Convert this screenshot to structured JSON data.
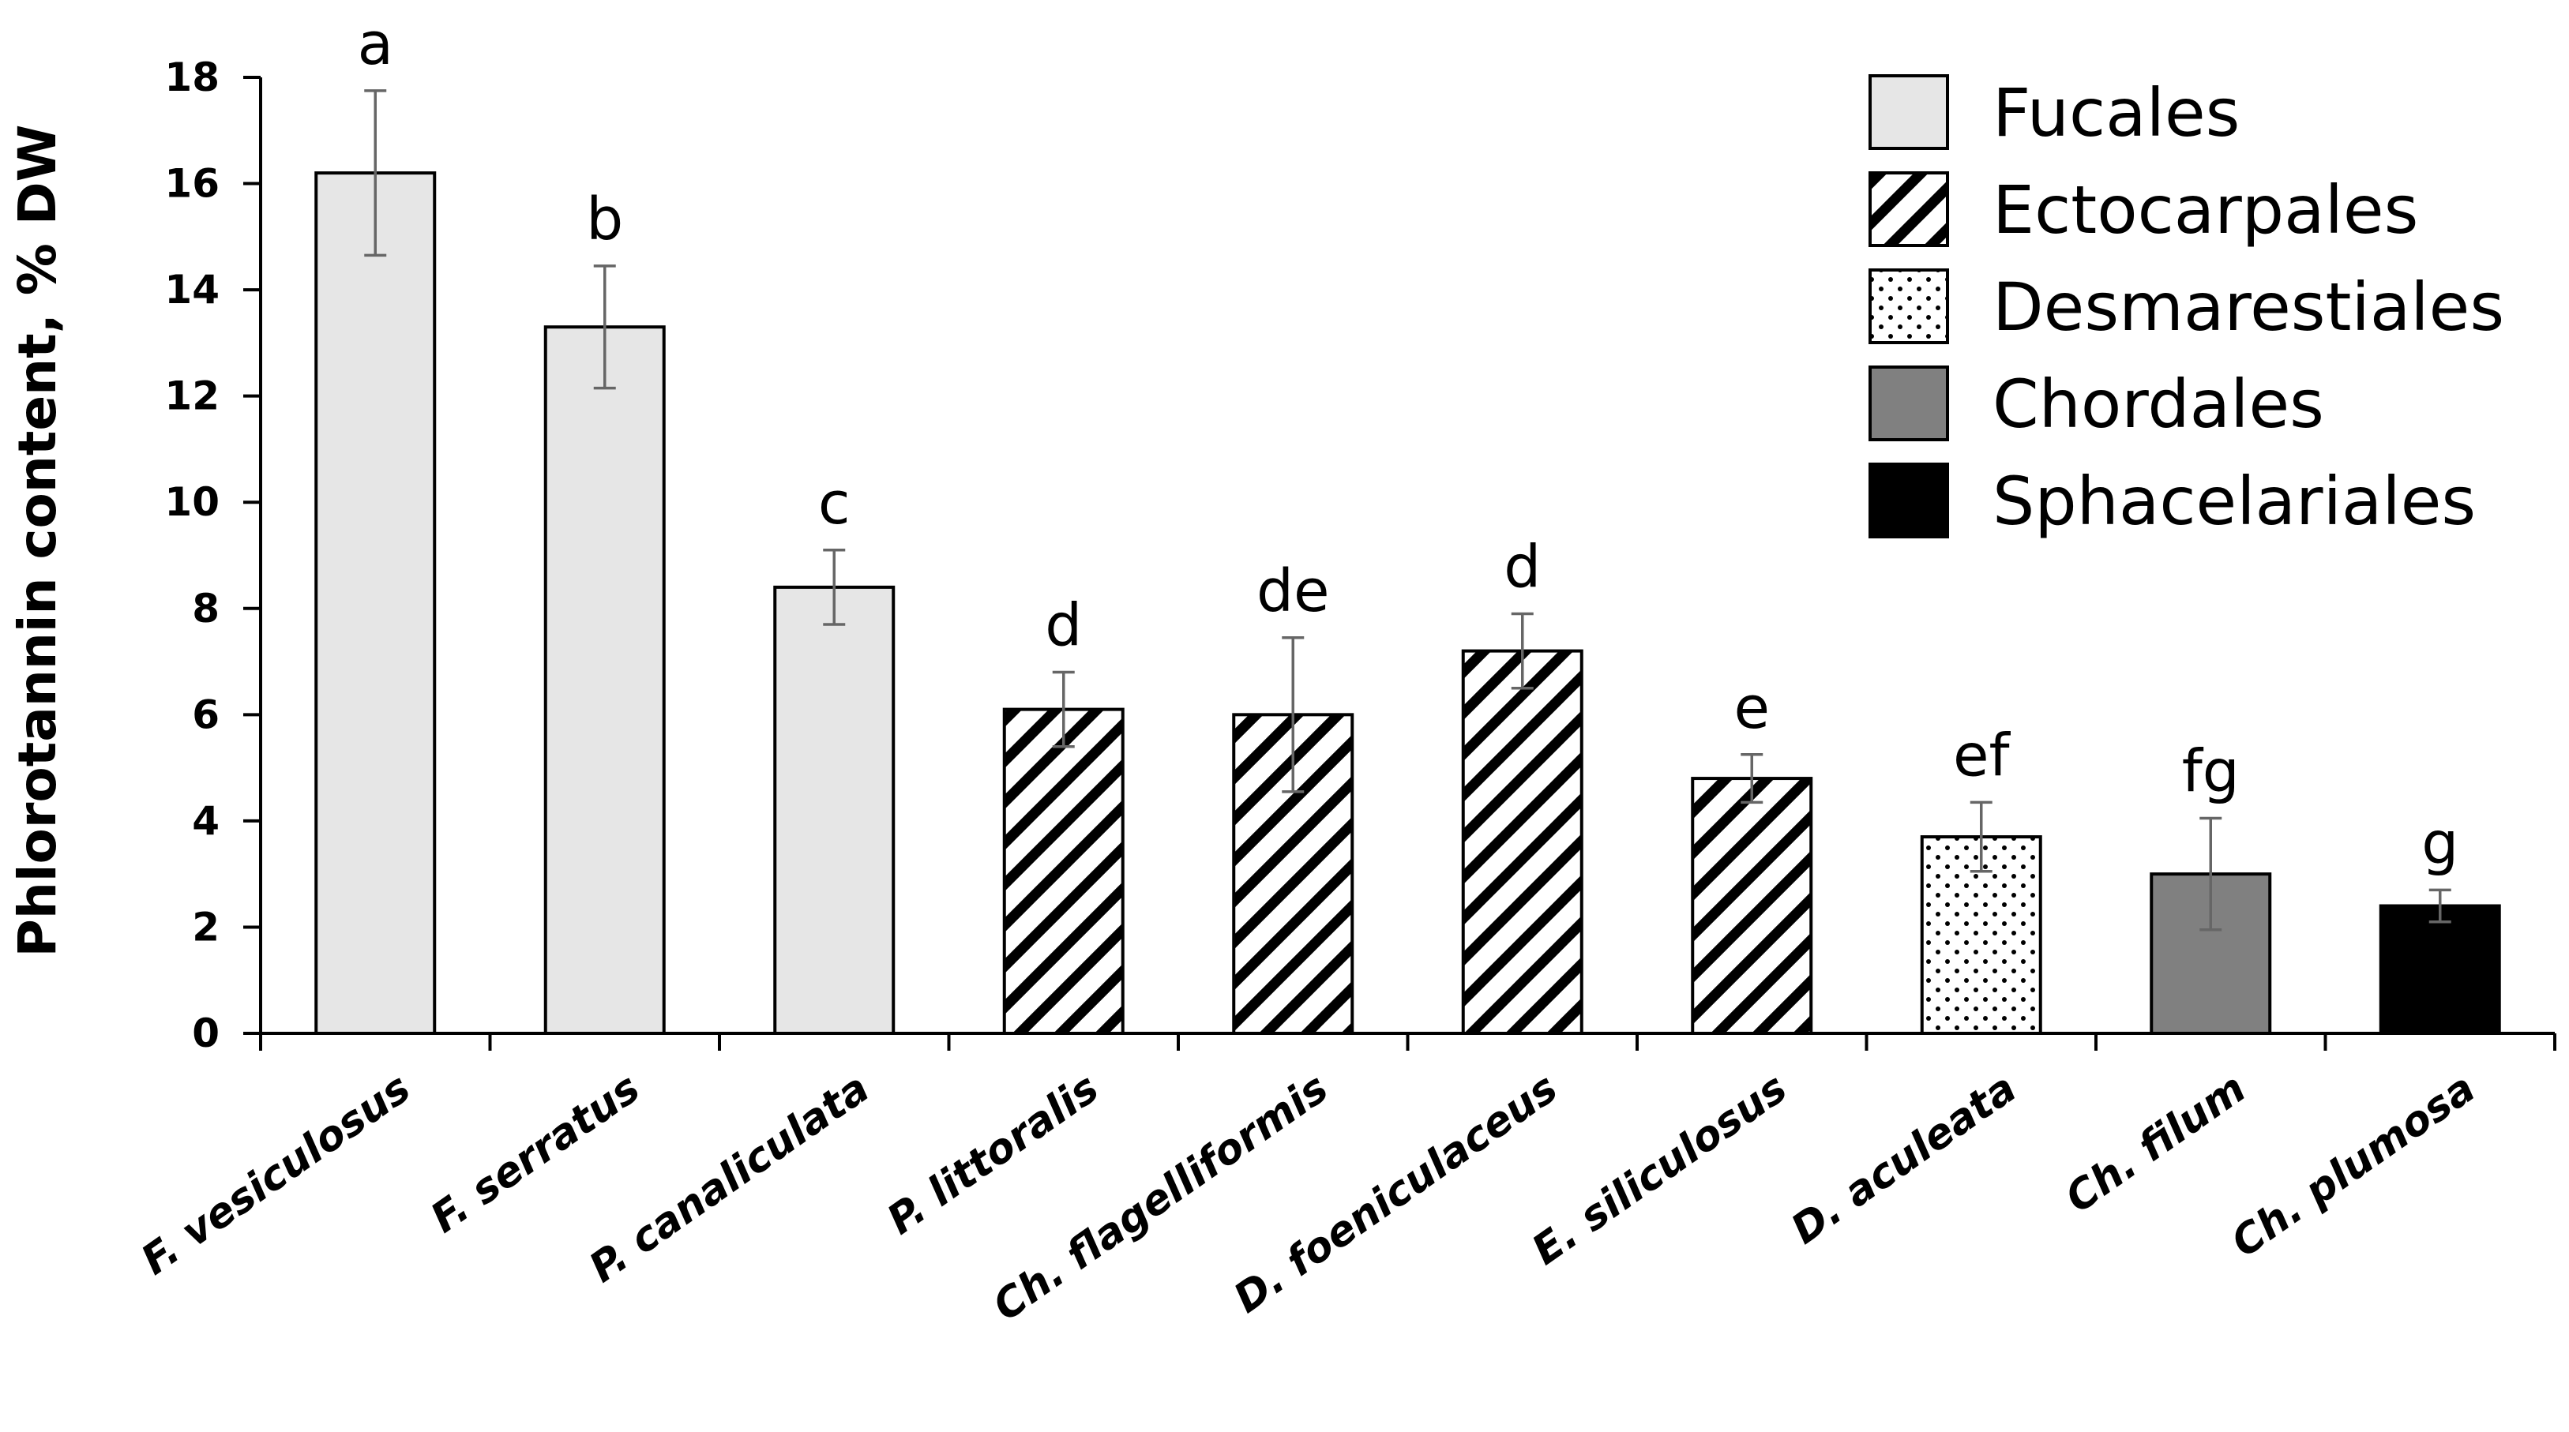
{
  "chart_data": {
    "type": "bar",
    "title": "",
    "xlabel": "",
    "ylabel": "Phlorotannin content, % DW",
    "ylim": [
      0,
      18
    ],
    "yticks": [
      "0",
      "2",
      "4",
      "6",
      "8",
      "10",
      "12",
      "14",
      "16",
      "18"
    ],
    "grid": false,
    "legend_position": "top-right",
    "categories": [
      "F. vesiculosus",
      "F. serratus",
      "P. canaliculata",
      "P. littoralis",
      "Ch. flagelliformis",
      "D. foeniculaceus",
      "E. siliculosus",
      "D. aculeata",
      "Ch. filum",
      "Ch. plumosa"
    ],
    "values": [
      16.2,
      13.3,
      8.4,
      6.1,
      6.0,
      7.2,
      4.8,
      3.7,
      3.0,
      2.4
    ],
    "errors": [
      1.55,
      1.15,
      0.7,
      0.7,
      1.45,
      0.7,
      0.45,
      0.65,
      1.05,
      0.3
    ],
    "significance_letters": [
      "a",
      "b",
      "c",
      "d",
      "de",
      "d",
      "e",
      "ef",
      "fg",
      "g"
    ],
    "groups": [
      "Fucales",
      "Fucales",
      "Fucales",
      "Ectocarpales",
      "Ectocarpales",
      "Ectocarpales",
      "Ectocarpales",
      "Desmarestiales",
      "Chordales",
      "Sphacelariales"
    ],
    "legend": [
      {
        "name": "Fucales",
        "style": "solid",
        "color": "#e6e6e6"
      },
      {
        "name": "Ectocarpales",
        "style": "diagonal-hatch",
        "color": "#000000"
      },
      {
        "name": "Desmarestiales",
        "style": "dots",
        "color": "#000000"
      },
      {
        "name": "Chordales",
        "style": "solid",
        "color": "#808080"
      },
      {
        "name": "Sphacelariales",
        "style": "solid",
        "color": "#000000"
      }
    ]
  }
}
